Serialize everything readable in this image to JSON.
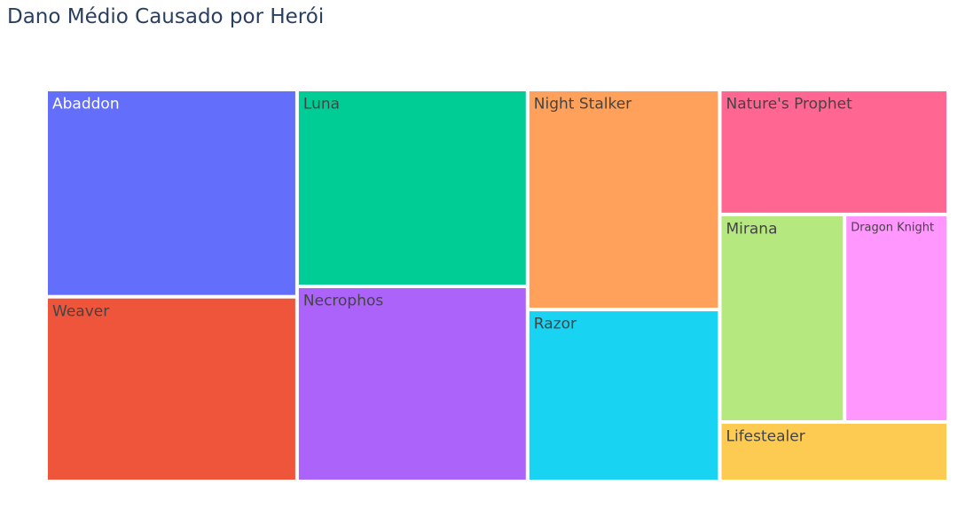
{
  "chart_data": {
    "type": "treemap",
    "title": "Dano Médio Causado por Herói",
    "items": [
      {
        "label": "Abaddon",
        "value": 63.6,
        "color": "#636efa",
        "text_color": "#ffffff"
      },
      {
        "label": "Weaver",
        "value": 56.7,
        "color": "#ef553b",
        "text_color": "#444444"
      },
      {
        "label": "Luna",
        "value": 55.5,
        "color": "#00cc96",
        "text_color": "#444444"
      },
      {
        "label": "Necrophos",
        "value": 55.0,
        "color": "#ab63fa",
        "text_color": "#444444"
      },
      {
        "label": "Night Stalker",
        "value": 51.7,
        "color": "#ffa15a",
        "text_color": "#444444"
      },
      {
        "label": "Razor",
        "value": 40.4,
        "color": "#19d3f3",
        "text_color": "#444444"
      },
      {
        "label": "Nature's Prophet",
        "value": 34.9,
        "color": "#ff6692",
        "text_color": "#444444"
      },
      {
        "label": "Mirana",
        "value": 31.7,
        "color": "#b6e880",
        "text_color": "#444444"
      },
      {
        "label": "Dragon Knight",
        "value": 26.3,
        "color": "#ff97ff",
        "text_color": "#444444"
      },
      {
        "label": "Lifestealer",
        "value": 16.6,
        "color": "#fecb52",
        "text_color": "#444444"
      }
    ]
  }
}
